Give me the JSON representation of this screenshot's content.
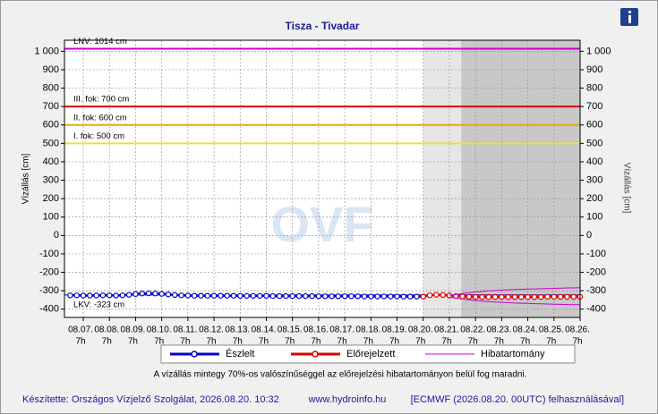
{
  "chart_data": {
    "type": "line",
    "title": "Tisza - Tivadar",
    "watermark": "OVF",
    "y_label": "Vízállás [cm]",
    "y2_label": "Vízállás [cm]",
    "xlim": [
      6.28,
      26
    ],
    "ylim": [
      -445,
      1060
    ],
    "xticks": [
      {
        "value": 7,
        "label": "08.07."
      },
      {
        "value": 8,
        "label": "08.08."
      },
      {
        "value": 9,
        "label": "08.09."
      },
      {
        "value": 10,
        "label": "08.10."
      },
      {
        "value": 11,
        "label": "08.11."
      },
      {
        "value": 12,
        "label": "08.12."
      },
      {
        "value": 13,
        "label": "08.13."
      },
      {
        "value": 14,
        "label": "08.14."
      },
      {
        "value": 15,
        "label": "08.15."
      },
      {
        "value": 16,
        "label": "08.16."
      },
      {
        "value": 17,
        "label": "08.17."
      },
      {
        "value": 18,
        "label": "08.18."
      },
      {
        "value": 19,
        "label": "08.19."
      },
      {
        "value": 20,
        "label": "08.20."
      },
      {
        "value": 21,
        "label": "08.21."
      },
      {
        "value": 22,
        "label": "08.22."
      },
      {
        "value": 23,
        "label": "08.23."
      },
      {
        "value": 24,
        "label": "08.24."
      },
      {
        "value": 25,
        "label": "08.25."
      },
      {
        "value": 26,
        "label": "08.26."
      }
    ],
    "xtick_hours": [
      "7h",
      "7h",
      "7h",
      "7h",
      "7h",
      "7h",
      "7h",
      "7h",
      "7h",
      "7h",
      "7h",
      "7h",
      "7h",
      "7h",
      "7h",
      "7h",
      "7h",
      "7h",
      "7h",
      "7h"
    ],
    "yticks": [
      -400,
      -300,
      -200,
      -100,
      0,
      100,
      200,
      300,
      400,
      500,
      600,
      700,
      800,
      900,
      {
        "value": 1000,
        "label": "1 000"
      }
    ],
    "grid": true,
    "shades": [
      {
        "from": 20,
        "to": 21.45,
        "color": "#e6e6e6"
      },
      {
        "from": 21.45,
        "to": 26,
        "color": "#c8c8c8"
      }
    ],
    "thresholds": [
      {
        "label": "LNV: 1014 cm",
        "value": 1014,
        "color": "#cc00cc"
      },
      {
        "label": "III. fok: 700 cm",
        "value": 700,
        "color": "#dd0000"
      },
      {
        "label": "II. fok: 600 cm",
        "value": 600,
        "color": "#e0b000"
      },
      {
        "label": "I. fok: 500 cm",
        "value": 500,
        "color": "#eedd44"
      },
      {
        "label": "LKV: -323 cm",
        "value": -323,
        "color": "#0000cc"
      }
    ],
    "series": [
      {
        "name": "Észlelt",
        "color": "#0000cc",
        "marker": true,
        "x": [
          6.5,
          6.75,
          7,
          7.25,
          7.5,
          7.75,
          8,
          8.25,
          8.5,
          8.75,
          9,
          9.25,
          9.5,
          9.75,
          10,
          10.25,
          10.5,
          10.75,
          11,
          11.25,
          11.5,
          11.75,
          12,
          12.25,
          12.5,
          12.75,
          13,
          13.25,
          13.5,
          13.75,
          14,
          14.25,
          14.5,
          14.75,
          15,
          15.25,
          15.5,
          15.75,
          16,
          16.25,
          16.5,
          16.75,
          17,
          17.25,
          17.5,
          17.75,
          18,
          18.25,
          18.5,
          18.75,
          19,
          19.25,
          19.5,
          19.75,
          20
        ],
        "values": [
          -325,
          -325,
          -326,
          -326,
          -326,
          -325,
          -325,
          -326,
          -325,
          -322,
          -318,
          -315,
          -314,
          -315,
          -317,
          -320,
          -323,
          -325,
          -326,
          -327,
          -327,
          -327,
          -327,
          -327,
          -327,
          -327,
          -328,
          -328,
          -328,
          -328,
          -328,
          -329,
          -329,
          -329,
          -329,
          -329,
          -329,
          -329,
          -330,
          -330,
          -330,
          -330,
          -330,
          -330,
          -330,
          -331,
          -331,
          -331,
          -331,
          -331,
          -331,
          -332,
          -332,
          -332,
          -332
        ]
      },
      {
        "name": "Előrejelzett",
        "color": "#dd0000",
        "marker": true,
        "x": [
          20,
          20.25,
          20.5,
          20.75,
          21,
          21.25,
          21.5,
          21.75,
          22,
          22.25,
          22.5,
          22.75,
          23,
          23.25,
          23.5,
          23.75,
          24,
          24.25,
          24.5,
          24.75,
          25,
          25.25,
          25.5,
          25.75,
          26
        ],
        "values": [
          -332,
          -325,
          -322,
          -323,
          -326,
          -329,
          -331,
          -333,
          -334,
          -334,
          -334,
          -334,
          -334,
          -334,
          -334,
          -334,
          -334,
          -334,
          -334,
          -333,
          -333,
          -333,
          -333,
          -333,
          -333
        ]
      },
      {
        "name": "Hibatartomány",
        "color": "#cc00cc",
        "marker": false,
        "x": [
          21,
          21.25,
          21.5,
          21.75,
          22,
          22.25,
          22.5,
          22.75,
          23,
          23.25,
          23.5,
          23.75,
          24,
          24.25,
          24.5,
          24.75,
          25,
          25.25,
          25.5,
          25.75,
          26
        ],
        "values": [
          -325,
          -320,
          -315,
          -311,
          -307,
          -304,
          -301,
          -299,
          -297,
          -295,
          -293,
          -292,
          -291,
          -290,
          -289,
          -288,
          -287,
          -286,
          -285,
          -285,
          -284
        ],
        "low_values": [
          -335,
          -340,
          -345,
          -349,
          -353,
          -356,
          -359,
          -361,
          -363,
          -365,
          -367,
          -368,
          -369,
          -370,
          -371,
          -372,
          -373,
          -374,
          -375,
          -376,
          -376
        ]
      }
    ],
    "note": "A vízállás mintegy 70%-os valószínűséggel az előrejelzési hibatartományon belül fog maradni.",
    "footer_left": "Készítette: Országos Vízjelző Szolgálat, 2026.08.20. 10:32",
    "footer_center": "www.hydroinfo.hu",
    "footer_right": "[ECMWF (2026.08.20. 00UTC) felhasználásával]"
  }
}
